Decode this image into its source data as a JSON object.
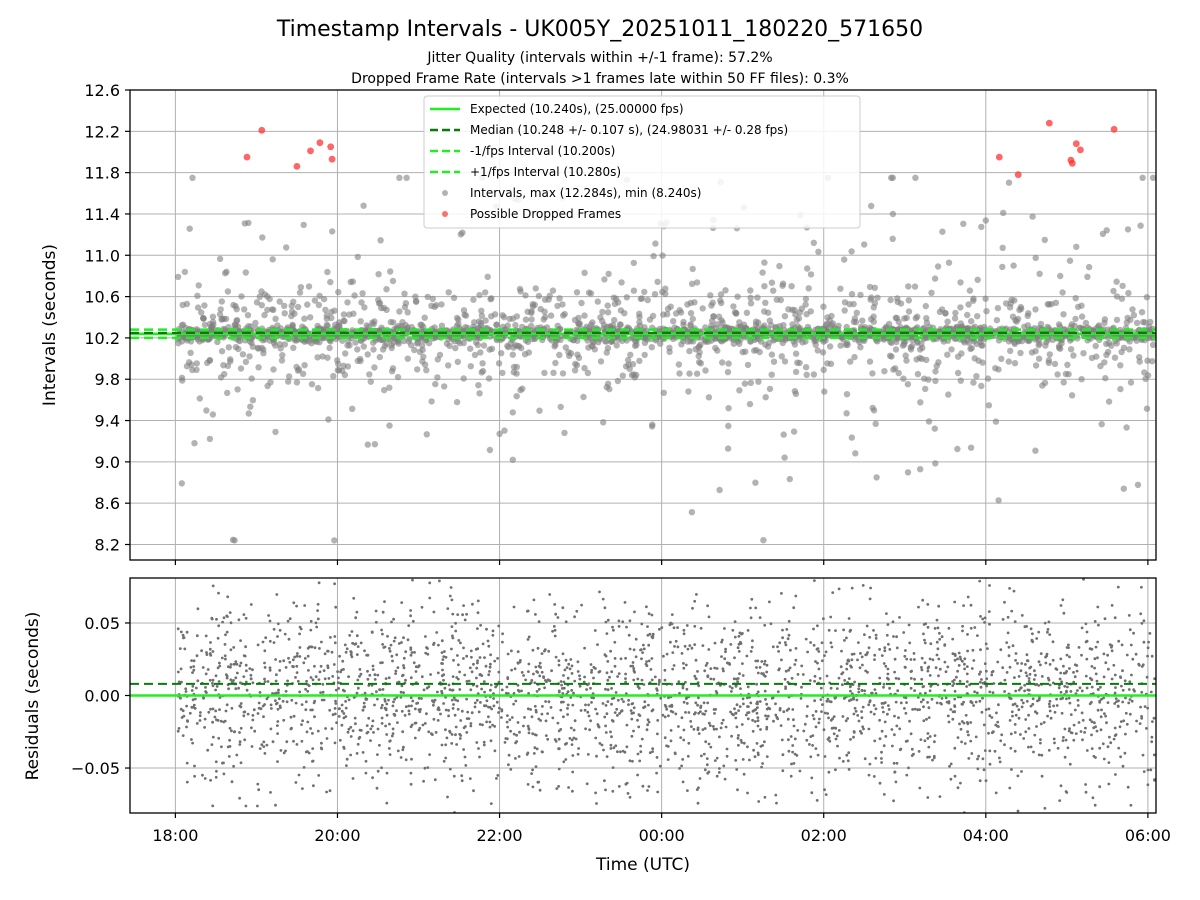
{
  "figure": {
    "title": "Timestamp Intervals - UK005Y_20251011_180220_571650",
    "subtitle_1": "Jitter Quality (intervals within +/-1 frame): 57.2%",
    "subtitle_2": "Dropped Frame Rate (intervals >1 frames late within 50 FF files): 0.3%"
  },
  "colors": {
    "expected": "#22ee22",
    "median": "#0a7a0a",
    "interval_band": "#22ee22",
    "points": "#808080",
    "dropped": "#ff3333",
    "grid": "#b0b0b0"
  },
  "chart_data": [
    {
      "type": "scatter",
      "panel": "intervals",
      "ylabel": "Intervals (seconds)",
      "ylim": [
        8.05,
        12.6
      ],
      "yticks": [
        "8.2",
        "8.6",
        "9.0",
        "9.4",
        "9.8",
        "10.2",
        "10.6",
        "11.0",
        "11.4",
        "11.8",
        "12.2",
        "12.6"
      ],
      "xlim_hours": [
        17.44,
        30.1
      ],
      "xticks": [
        "18:00",
        "20:00",
        "22:00",
        "00:00",
        "02:00",
        "04:00",
        "06:00"
      ],
      "grid": true,
      "legend_position": "top-center",
      "legend": [
        "Expected (10.240s), (25.00000 fps)",
        "Median (10.248 +/- 0.107 s), (24.98031 +/- 0.28 fps)",
        "-1/fps Interval (10.200s)",
        "+1/fps Interval (10.280s)",
        "Intervals, max (12.284s), min (8.240s)",
        "Possible Dropped Frames"
      ],
      "lines": {
        "expected": 10.24,
        "median": 10.248,
        "minus_one_frame": 10.2,
        "plus_one_frame": 10.28
      },
      "max_interval": 12.284,
      "min_interval": 8.24,
      "median_std": 0.107,
      "approx_point_count": 2800,
      "x_time_range": [
        "18:02",
        "06:05"
      ],
      "dropped_frames": [
        {
          "x": "18:53",
          "y": 11.95
        },
        {
          "x": "19:04",
          "y": 12.21
        },
        {
          "x": "19:30",
          "y": 11.86
        },
        {
          "x": "19:40",
          "y": 12.01
        },
        {
          "x": "19:47",
          "y": 12.09
        },
        {
          "x": "19:55",
          "y": 12.05
        },
        {
          "x": "19:56",
          "y": 11.93
        },
        {
          "x": "04:10",
          "y": 11.95
        },
        {
          "x": "04:24",
          "y": 11.78
        },
        {
          "x": "04:47",
          "y": 12.28
        },
        {
          "x": "05:03",
          "y": 11.92
        },
        {
          "x": "05:04",
          "y": 11.89
        },
        {
          "x": "05:07",
          "y": 12.08
        },
        {
          "x": "05:10",
          "y": 12.02
        },
        {
          "x": "05:35",
          "y": 12.22
        }
      ]
    },
    {
      "type": "scatter",
      "panel": "residuals",
      "ylabel": "Residuals (seconds)",
      "xlabel": "Time (UTC)",
      "ylim": [
        -0.081,
        0.081
      ],
      "yticks": [
        "−0.05",
        "0.00",
        "0.05"
      ],
      "xlim_hours": [
        17.44,
        30.1
      ],
      "xticks": [
        "18:00",
        "20:00",
        "22:00",
        "00:00",
        "02:00",
        "04:00",
        "06:00"
      ],
      "grid": true,
      "lines": {
        "expected": 0.0,
        "median": 0.008
      },
      "approx_point_count": 2800
    }
  ]
}
